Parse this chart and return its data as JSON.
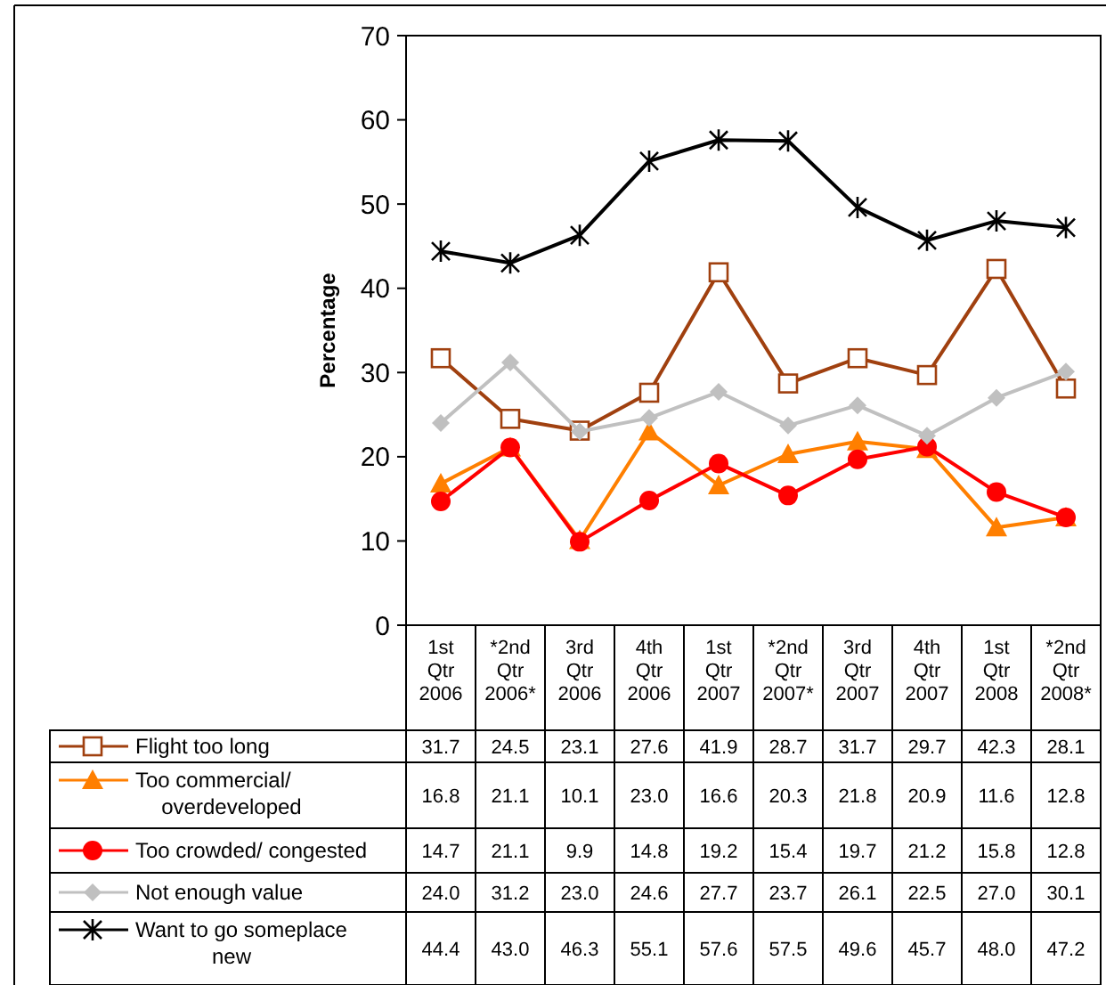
{
  "chart_data": {
    "type": "line",
    "ylabel": "Percentage",
    "categories": [
      "1st Qtr 2006",
      "*2nd Qtr 2006*",
      "3rd Qtr 2006",
      "4th Qtr 2006",
      "1st Qtr 2007",
      "*2nd Qtr 2007*",
      "3rd Qtr 2007",
      "4th Qtr 2007",
      "1st Qtr 2008",
      "*2nd Qtr 2008*"
    ],
    "ylim": [
      0,
      70
    ],
    "yticks": [
      0,
      10,
      20,
      30,
      40,
      50,
      60,
      70
    ],
    "grid": false,
    "legend": "bottom",
    "data_labels": true,
    "series": [
      {
        "name": "Flight too long",
        "color": "#a0400f",
        "marker": "square",
        "values": [
          31.7,
          24.5,
          23.1,
          27.6,
          41.9,
          28.7,
          31.7,
          29.7,
          42.3,
          28.1
        ],
        "value_labels": [
          "31.7",
          "24.5",
          "23.1",
          "27.6",
          "41.9",
          "28.7",
          "31.7",
          "29.7",
          "42.3",
          "28.1"
        ]
      },
      {
        "name": "Too commercial/ overdeveloped",
        "color": "#ff7f00",
        "marker": "triangle",
        "values": [
          16.8,
          21.1,
          10.1,
          23.0,
          16.6,
          20.3,
          21.8,
          20.9,
          11.6,
          12.8
        ],
        "value_labels": [
          "16.8",
          "21.1",
          "10.1",
          "23.0",
          "16.6",
          "20.3",
          "21.8",
          "20.9",
          "11.6",
          "12.8"
        ]
      },
      {
        "name": "Too crowded/ congested",
        "color": "#ff0000",
        "marker": "circle",
        "values": [
          14.7,
          21.1,
          9.9,
          14.8,
          19.2,
          15.4,
          19.7,
          21.2,
          15.8,
          12.8
        ],
        "value_labels": [
          "14.7",
          "21.1",
          "9.9",
          "14.8",
          "19.2",
          "15.4",
          "19.7",
          "21.2",
          "15.8",
          "12.8"
        ]
      },
      {
        "name": "Not enough value",
        "color": "#c0c0c0",
        "marker": "diamond",
        "values": [
          24.0,
          31.2,
          23.0,
          24.6,
          27.7,
          23.7,
          26.1,
          22.5,
          27.0,
          30.1
        ],
        "value_labels": [
          "24.0",
          "31.2",
          "23.0",
          "24.6",
          "27.7",
          "23.7",
          "26.1",
          "22.5",
          "27.0",
          "30.1"
        ]
      },
      {
        "name": "Want to go someplace new",
        "color": "#000000",
        "marker": "cross",
        "values": [
          44.4,
          43.0,
          46.3,
          55.1,
          57.6,
          57.5,
          49.6,
          45.7,
          48.0,
          47.2
        ],
        "value_labels": [
          "44.4",
          "43.0",
          "46.3",
          "55.1",
          "57.6",
          "57.5",
          "49.6",
          "45.7",
          "48.0",
          "47.2"
        ]
      }
    ]
  }
}
